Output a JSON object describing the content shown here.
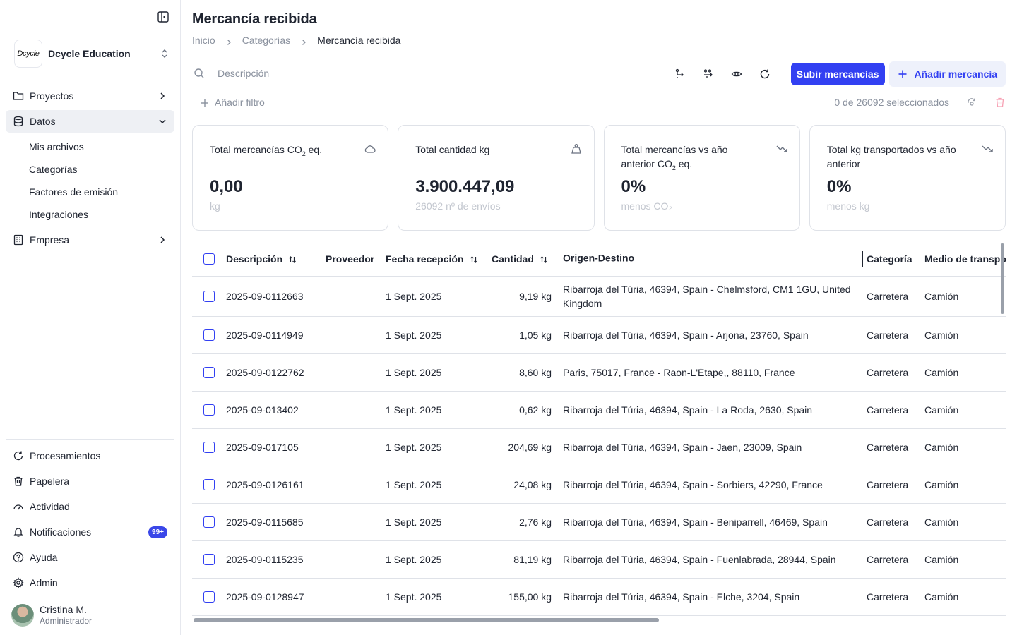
{
  "org": {
    "logo_text": "Dcycle",
    "name": "Dcycle Education"
  },
  "sidebar": {
    "items": [
      {
        "label": "Proyectos"
      },
      {
        "label": "Datos"
      },
      {
        "label": "Empresa"
      }
    ],
    "sub_items": [
      "Mis archivos",
      "Categorías",
      "Factores de emisión",
      "Integraciones"
    ],
    "bottom_items": [
      {
        "label": "Procesamientos"
      },
      {
        "label": "Papelera"
      },
      {
        "label": "Actividad"
      },
      {
        "label": "Notificaciones",
        "badge": "99+"
      },
      {
        "label": "Ayuda"
      },
      {
        "label": "Admin"
      }
    ],
    "user": {
      "name": "Cristina M.",
      "role": "Administrador"
    }
  },
  "page": {
    "title": "Mercancía recibida",
    "breadcrumb": [
      "Inicio",
      "Categorías",
      "Mercancía recibida"
    ]
  },
  "search": {
    "placeholder": "Descripción",
    "value": ""
  },
  "toolbar": {
    "upload_label": "Subir mercancías",
    "add_label": "Añadir mercancía"
  },
  "filters": {
    "add_filter_label": "Añadir filtro",
    "selection_text": "0 de 26092 seleccionados"
  },
  "cards": [
    {
      "title_pre": "Total mercancías CO",
      "title_sub": "2",
      "title_post": " eq.",
      "value": "0,00",
      "sub": "kg",
      "icon": "cloud-icon"
    },
    {
      "title_pre": "Total cantidad kg",
      "title_sub": "",
      "title_post": "",
      "value": "3.900.447,09",
      "sub": "26092 nº de envíos",
      "icon": "weight-icon"
    },
    {
      "title_pre": "Total mercancías vs año anterior CO",
      "title_sub": "2",
      "title_post": " eq.",
      "value": "0%",
      "sub": "menos CO₂",
      "icon": "trend-down-icon"
    },
    {
      "title_pre": "Total kg transportados vs año anterior",
      "title_sub": "",
      "title_post": "",
      "value": "0%",
      "sub": "menos kg",
      "icon": "trend-down-icon"
    }
  ],
  "table": {
    "columns": [
      "Descripción",
      "Proveedor",
      "Fecha recepción",
      "Cantidad",
      "Origen-Destino",
      "Categoría",
      "Medio de transporte"
    ],
    "rows": [
      {
        "descripcion": "2025-09-0112663",
        "proveedor": "",
        "fecha": "1 Sept. 2025",
        "cantidad": "9,19 kg",
        "ruta": "Ribarroja del Túria, 46394, Spain - Chelmsford, CM1 1GU, United Kingdom",
        "categoria": "Carretera",
        "medio": "Camión"
      },
      {
        "descripcion": "2025-09-0114949",
        "proveedor": "",
        "fecha": "1 Sept. 2025",
        "cantidad": "1,05 kg",
        "ruta": "Ribarroja del Túria, 46394, Spain - Arjona, 23760, Spain",
        "categoria": "Carretera",
        "medio": "Camión"
      },
      {
        "descripcion": "2025-09-0122762",
        "proveedor": "",
        "fecha": "1 Sept. 2025",
        "cantidad": "8,60 kg",
        "ruta": "Paris, 75017, France - Raon-L'Étape,, 88110, France",
        "categoria": "Carretera",
        "medio": "Camión"
      },
      {
        "descripcion": "2025-09-013402",
        "proveedor": "",
        "fecha": "1 Sept. 2025",
        "cantidad": "0,62 kg",
        "ruta": "Ribarroja del Túria, 46394, Spain - La Roda, 2630, Spain",
        "categoria": "Carretera",
        "medio": "Camión"
      },
      {
        "descripcion": "2025-09-017105",
        "proveedor": "",
        "fecha": "1 Sept. 2025",
        "cantidad": "204,69 kg",
        "ruta": "Ribarroja del Túria, 46394, Spain - Jaen, 23009, Spain",
        "categoria": "Carretera",
        "medio": "Camión"
      },
      {
        "descripcion": "2025-09-0126161",
        "proveedor": "",
        "fecha": "1 Sept. 2025",
        "cantidad": "24,08 kg",
        "ruta": "Ribarroja del Túria, 46394, Spain - Sorbiers, 42290, France",
        "categoria": "Carretera",
        "medio": "Camión"
      },
      {
        "descripcion": "2025-09-0115685",
        "proveedor": "",
        "fecha": "1 Sept. 2025",
        "cantidad": "2,76 kg",
        "ruta": "Ribarroja del Túria, 46394, Spain - Beniparrell, 46469, Spain",
        "categoria": "Carretera",
        "medio": "Camión"
      },
      {
        "descripcion": "2025-09-0115235",
        "proveedor": "",
        "fecha": "1 Sept. 2025",
        "cantidad": "81,19 kg",
        "ruta": "Ribarroja del Túria, 46394, Spain - Fuenlabrada, 28944, Spain",
        "categoria": "Carretera",
        "medio": "Camión"
      },
      {
        "descripcion": "2025-09-0128947",
        "proveedor": "",
        "fecha": "1 Sept. 2025",
        "cantidad": "155,00 kg",
        "ruta": "Ribarroja del Túria, 46394, Spain - Elche, 3204, Spain",
        "categoria": "Carretera",
        "medio": "Camión"
      }
    ]
  },
  "colors": {
    "primary": "#3240f2",
    "badge": "#3a47e8",
    "delete": "#f7a1b4"
  }
}
